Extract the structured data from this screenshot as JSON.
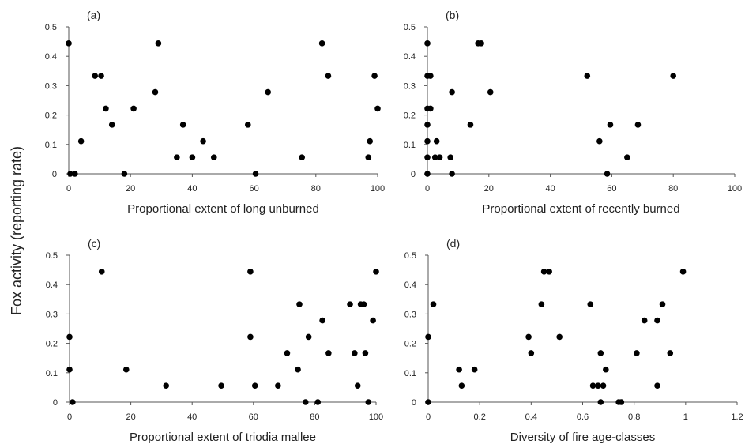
{
  "shared_ylabel": "Fox activity (reporting rate)",
  "chart_data": [
    {
      "type": "scatter",
      "panel": "(a)",
      "xlabel": "Proportional extent of long unburned",
      "xlim": [
        0,
        100
      ],
      "ylim": [
        0,
        0.5
      ],
      "xticks": [
        0,
        20,
        40,
        60,
        80,
        100
      ],
      "xtick_labels": [
        "0",
        "20",
        "40",
        "60",
        "80",
        "100"
      ],
      "yticks": [
        0,
        0.1,
        0.2,
        0.3,
        0.4,
        0.5
      ],
      "ytick_labels": [
        "0",
        "0.1",
        "0.2",
        "0.3",
        "0.4",
        "0.5"
      ],
      "points": [
        [
          0,
          0.444
        ],
        [
          0.5,
          0
        ],
        [
          2,
          0
        ],
        [
          4,
          0.111
        ],
        [
          8.5,
          0.333
        ],
        [
          10.5,
          0.333
        ],
        [
          12,
          0.222
        ],
        [
          14,
          0.167
        ],
        [
          18,
          0
        ],
        [
          21,
          0.222
        ],
        [
          28,
          0.278
        ],
        [
          29,
          0.444
        ],
        [
          35,
          0.056
        ],
        [
          37,
          0.167
        ],
        [
          40,
          0.056
        ],
        [
          43.5,
          0.111
        ],
        [
          47,
          0.056
        ],
        [
          58,
          0.167
        ],
        [
          60.5,
          0
        ],
        [
          64.5,
          0.278
        ],
        [
          75.5,
          0.056
        ],
        [
          82,
          0.444
        ],
        [
          84,
          0.333
        ],
        [
          97,
          0.056
        ],
        [
          97.5,
          0.111
        ],
        [
          99,
          0.333
        ],
        [
          100,
          0.222
        ]
      ]
    },
    {
      "type": "scatter",
      "panel": "(b)",
      "xlabel": "Proportional extent of recently burned",
      "xlim": [
        0,
        100
      ],
      "ylim": [
        0,
        0.5
      ],
      "xticks": [
        0,
        20,
        40,
        60,
        80,
        100
      ],
      "xtick_labels": [
        "0",
        "20",
        "40",
        "60",
        "80",
        "100"
      ],
      "yticks": [
        0,
        0.1,
        0.2,
        0.3,
        0.4,
        0.5
      ],
      "ytick_labels": [
        "0",
        "0.1",
        "0.2",
        "0.3",
        "0.4",
        "0.5"
      ],
      "points": [
        [
          0,
          0.444
        ],
        [
          0,
          0.333
        ],
        [
          0,
          0.222
        ],
        [
          0,
          0.167
        ],
        [
          0,
          0.111
        ],
        [
          0,
          0.056
        ],
        [
          0,
          0
        ],
        [
          1,
          0.333
        ],
        [
          1,
          0.222
        ],
        [
          2.5,
          0.056
        ],
        [
          3,
          0.111
        ],
        [
          4,
          0.056
        ],
        [
          7.5,
          0.056
        ],
        [
          8,
          0.278
        ],
        [
          8,
          0
        ],
        [
          14,
          0.167
        ],
        [
          16.5,
          0.444
        ],
        [
          17.5,
          0.444
        ],
        [
          20.5,
          0.278
        ],
        [
          52,
          0.333
        ],
        [
          56,
          0.111
        ],
        [
          58.5,
          0
        ],
        [
          59.5,
          0.167
        ],
        [
          65,
          0.056
        ],
        [
          68.5,
          0.167
        ],
        [
          80,
          0.333
        ]
      ]
    },
    {
      "type": "scatter",
      "panel": "(c)",
      "xlabel": "Proportional extent of triodia mallee",
      "xlim": [
        0,
        100
      ],
      "ylim": [
        0,
        0.5
      ],
      "xticks": [
        0,
        20,
        40,
        60,
        80,
        100
      ],
      "xtick_labels": [
        "0",
        "20",
        "40",
        "60",
        "80",
        "100"
      ],
      "yticks": [
        0,
        0.1,
        0.2,
        0.3,
        0.4,
        0.5
      ],
      "ytick_labels": [
        "0",
        "0.1",
        "0.2",
        "0.3",
        "0.4",
        "0.5"
      ],
      "points": [
        [
          0,
          0.222
        ],
        [
          0,
          0.111
        ],
        [
          1,
          0
        ],
        [
          10.5,
          0.444
        ],
        [
          18.5,
          0.111
        ],
        [
          31.5,
          0.056
        ],
        [
          49.5,
          0.056
        ],
        [
          59,
          0.444
        ],
        [
          59,
          0.222
        ],
        [
          60.5,
          0.056
        ],
        [
          68,
          0.056
        ],
        [
          71,
          0.167
        ],
        [
          74.5,
          0.111
        ],
        [
          75,
          0.333
        ],
        [
          77,
          0
        ],
        [
          78,
          0.222
        ],
        [
          81,
          0
        ],
        [
          82.5,
          0.278
        ],
        [
          84.5,
          0.167
        ],
        [
          91.5,
          0.333
        ],
        [
          93,
          0.167
        ],
        [
          94,
          0.056
        ],
        [
          95,
          0.333
        ],
        [
          96,
          0.333
        ],
        [
          96.5,
          0.167
        ],
        [
          97.5,
          0
        ],
        [
          99,
          0.278
        ],
        [
          100,
          0.444
        ]
      ]
    },
    {
      "type": "scatter",
      "panel": "(d)",
      "xlabel": "Diversity of fire age-classes",
      "xlim": [
        0,
        1.2
      ],
      "ylim": [
        0,
        0.5
      ],
      "xticks": [
        0,
        0.2,
        0.4,
        0.6,
        0.8,
        1,
        1.2
      ],
      "xtick_labels": [
        "0",
        "0.2",
        "0.4",
        "0.6",
        "0.8",
        "1",
        "1.2"
      ],
      "yticks": [
        0,
        0.1,
        0.2,
        0.3,
        0.4,
        0.5
      ],
      "ytick_labels": [
        "0",
        "0.1",
        "0.2",
        "0.3",
        "0.4",
        "0.5"
      ],
      "points": [
        [
          0,
          0.222
        ],
        [
          0,
          0
        ],
        [
          0.02,
          0.333
        ],
        [
          0.12,
          0.111
        ],
        [
          0.13,
          0.056
        ],
        [
          0.18,
          0.111
        ],
        [
          0.39,
          0.222
        ],
        [
          0.4,
          0.167
        ],
        [
          0.44,
          0.333
        ],
        [
          0.45,
          0.444
        ],
        [
          0.47,
          0.444
        ],
        [
          0.51,
          0.222
        ],
        [
          0.63,
          0.333
        ],
        [
          0.64,
          0.056
        ],
        [
          0.66,
          0.056
        ],
        [
          0.67,
          0.167
        ],
        [
          0.67,
          0
        ],
        [
          0.68,
          0.056
        ],
        [
          0.69,
          0.111
        ],
        [
          0.74,
          0
        ],
        [
          0.75,
          0
        ],
        [
          0.81,
          0.167
        ],
        [
          0.84,
          0.278
        ],
        [
          0.89,
          0.278
        ],
        [
          0.89,
          0.056
        ],
        [
          0.91,
          0.333
        ],
        [
          0.94,
          0.167
        ],
        [
          0.99,
          0.444
        ]
      ]
    }
  ]
}
